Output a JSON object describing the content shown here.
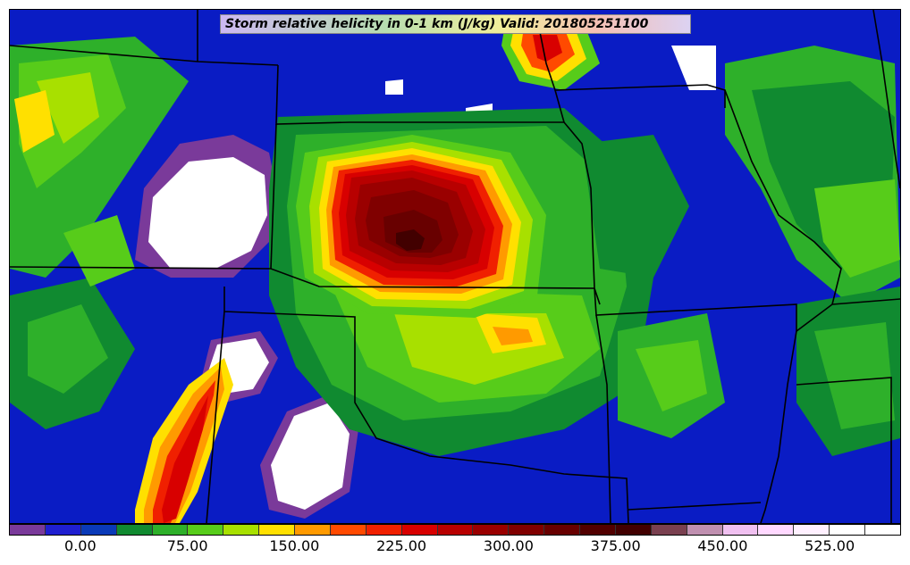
{
  "title": "Storm relative helicity in 0-1 km (J/kg) Valid: 201805251100",
  "colorbar": {
    "colors": [
      "#7a3a9a",
      "#1f1fd0",
      "#0a3ab8",
      "#108a30",
      "#2eb02a",
      "#57cc1a",
      "#a8e000",
      "#ffe000",
      "#ff9a00",
      "#ff4a00",
      "#f02000",
      "#d80000",
      "#b80000",
      "#9a0000",
      "#800000",
      "#680000",
      "#520000",
      "#420000",
      "#7a4050",
      "#c090b0",
      "#f0c0f0",
      "#ffd8ff",
      "#fff0ff",
      "#ffffff",
      "#ffffff"
    ],
    "tick_labels": [
      "0.00",
      "75.00",
      "150.00",
      "225.00",
      "300.00",
      "375.00",
      "450.00",
      "525.00"
    ]
  }
}
